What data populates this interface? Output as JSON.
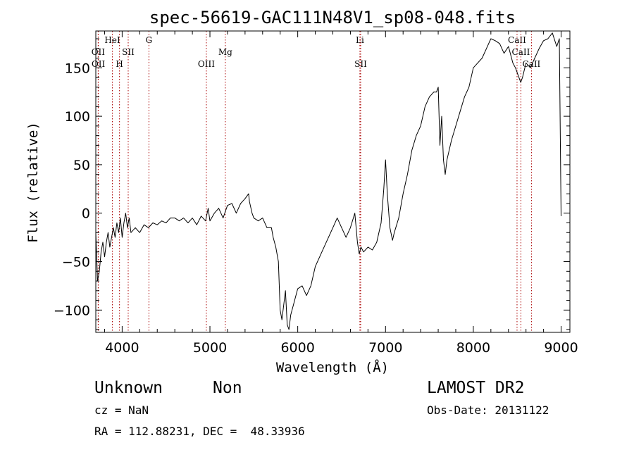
{
  "chart_data": {
    "type": "line",
    "title": "spec-56619-GAC111N48V1_sp08-048.fits",
    "xlabel": "Wavelength (Å)",
    "ylabel": "Flux (relative)",
    "xlim": [
      3700,
      9100
    ],
    "ylim": [
      -123,
      188
    ],
    "xticks": [
      4000,
      5000,
      6000,
      7000,
      8000,
      9000
    ],
    "xtick_labels": [
      "4000",
      "5000",
      "6000",
      "7000",
      "8000",
      "9000"
    ],
    "yticks": [
      -100,
      -50,
      0,
      50,
      100,
      150
    ],
    "ytick_labels": [
      "−100",
      "−50",
      "0",
      "50",
      "100",
      "150"
    ],
    "grid": false,
    "line_color": "#000000",
    "marker_color": "#aa0000",
    "series": [
      {
        "x": [
          3700,
          3720,
          3740,
          3760,
          3780,
          3800,
          3820,
          3840,
          3860,
          3880,
          3900,
          3920,
          3940,
          3960,
          3980,
          4000,
          4020,
          4040,
          4060,
          4080,
          4100,
          4150,
          4200,
          4250,
          4300,
          4350,
          4400,
          4450,
          4500,
          4550,
          4600,
          4650,
          4700,
          4750,
          4800,
          4850,
          4900,
          4950,
          4980,
          5000,
          5050,
          5100,
          5150,
          5200,
          5250,
          5300,
          5350,
          5400,
          5440,
          5450,
          5480,
          5500,
          5550,
          5600,
          5650,
          5700,
          5720,
          5750,
          5780,
          5800,
          5820,
          5840,
          5860,
          5880,
          5900,
          5920,
          5950,
          6000,
          6050,
          6100,
          6150,
          6200,
          6250,
          6300,
          6350,
          6400,
          6450,
          6500,
          6550,
          6600,
          6650,
          6680,
          6700,
          6720,
          6750,
          6800,
          6850,
          6900,
          6950,
          6980,
          7000,
          7020,
          7050,
          7080,
          7100,
          7150,
          7200,
          7250,
          7300,
          7350,
          7400,
          7450,
          7500,
          7550,
          7580,
          7600,
          7620,
          7640,
          7660,
          7680,
          7700,
          7750,
          7800,
          7850,
          7900,
          7950,
          8000,
          8050,
          8100,
          8150,
          8200,
          8250,
          8300,
          8350,
          8400,
          8450,
          8480,
          8500,
          8540,
          8560,
          8600,
          8650,
          8700,
          8750,
          8800,
          8850,
          8900,
          8950,
          8980,
          9000
        ],
        "y": [
          -20,
          -70,
          -60,
          -40,
          -30,
          -45,
          -30,
          -20,
          -35,
          -25,
          -15,
          -25,
          -10,
          -20,
          -5,
          -25,
          -10,
          0,
          -15,
          -5,
          -20,
          -15,
          -20,
          -12,
          -15,
          -10,
          -12,
          -8,
          -10,
          -5,
          -5,
          -8,
          -5,
          -10,
          -5,
          -12,
          -3,
          -8,
          5,
          -8,
          0,
          5,
          -5,
          8,
          10,
          0,
          10,
          15,
          20,
          12,
          0,
          -5,
          -8,
          -5,
          -15,
          -15,
          -25,
          -35,
          -50,
          -100,
          -110,
          -95,
          -80,
          -115,
          -120,
          -105,
          -95,
          -78,
          -75,
          -85,
          -75,
          -55,
          -45,
          -35,
          -25,
          -15,
          -5,
          -15,
          -25,
          -15,
          0,
          -30,
          -42,
          -35,
          -40,
          -35,
          -38,
          -30,
          -10,
          25,
          55,
          20,
          -15,
          -28,
          -20,
          -5,
          20,
          40,
          65,
          80,
          90,
          110,
          120,
          125,
          125,
          130,
          70,
          100,
          55,
          40,
          55,
          75,
          90,
          105,
          120,
          130,
          150,
          155,
          160,
          170,
          180,
          178,
          175,
          165,
          172,
          155,
          150,
          145,
          135,
          140,
          155,
          150,
          160,
          170,
          178,
          180,
          186,
          172,
          180,
          -3
        ]
      }
    ],
    "line_markers": [
      {
        "label": "OII",
        "x": 3727,
        "row": 2
      },
      {
        "label": "OII",
        "x": 3729,
        "row": 3
      },
      {
        "label": "HeI",
        "x": 3889,
        "row": 1
      },
      {
        "label": "H",
        "x": 3970,
        "row": 3
      },
      {
        "label": "SII",
        "x": 4069,
        "row": 2
      },
      {
        "label": "G",
        "x": 4305,
        "row": 1
      },
      {
        "label": "OIII",
        "x": 4959,
        "row": 3
      },
      {
        "label": "Mg",
        "x": 5175,
        "row": 2
      },
      {
        "label": "Li",
        "x": 6708,
        "row": 1
      },
      {
        "label": "SII",
        "x": 6717,
        "row": 3
      },
      {
        "label": "CaII",
        "x": 8498,
        "row": 1
      },
      {
        "label": "CaII",
        "x": 8542,
        "row": 2
      },
      {
        "label": "CaII",
        "x": 8662,
        "row": 3
      }
    ]
  },
  "info": {
    "class": "Unknown",
    "subclass": "Non",
    "survey": "LAMOST DR2",
    "cz": "cz = NaN",
    "obs_date": "Obs-Date: 20131122",
    "coords": "RA = 112.88231, DEC =  48.33936"
  }
}
